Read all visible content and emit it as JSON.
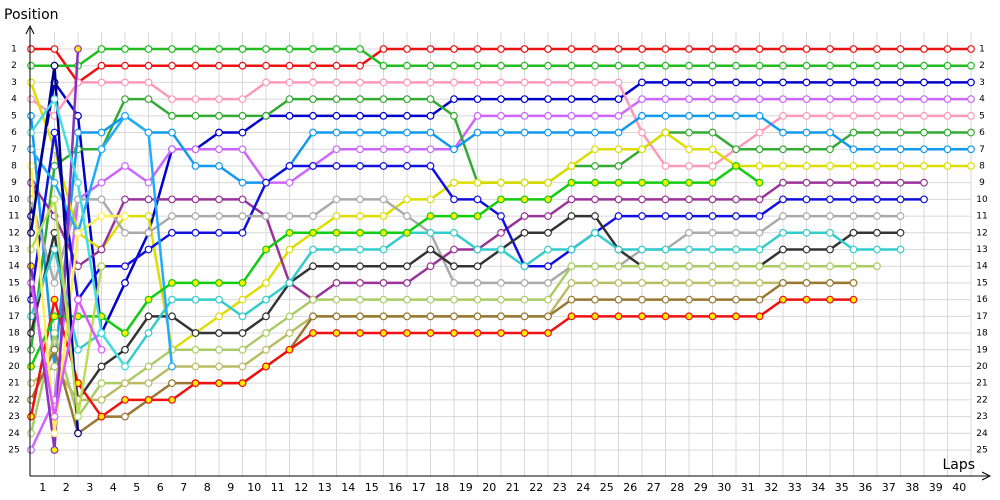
{
  "chart_data": {
    "type": "line",
    "y_label": "Position",
    "x_label": "Laps",
    "x": [
      0,
      1,
      2,
      3,
      4,
      5,
      6,
      7,
      8,
      9,
      10,
      11,
      12,
      13,
      14,
      15,
      16,
      17,
      18,
      19,
      20,
      21,
      22,
      23,
      24,
      25,
      26,
      27,
      28,
      29,
      30,
      31,
      32,
      33,
      34,
      35,
      36,
      37,
      38,
      39,
      40
    ],
    "xlim": [
      0,
      40
    ],
    "xticks": [
      1,
      2,
      3,
      4,
      5,
      6,
      7,
      8,
      9,
      10,
      11,
      12,
      13,
      14,
      15,
      16,
      17,
      18,
      19,
      20,
      21,
      22,
      23,
      24,
      25,
      26,
      27,
      28,
      29,
      30,
      31,
      32,
      33,
      34,
      35,
      36,
      37,
      38,
      39,
      40
    ],
    "ylim": [
      1,
      25
    ],
    "yticks": [
      1,
      2,
      3,
      4,
      5,
      6,
      7,
      8,
      9,
      10,
      11,
      12,
      13,
      14,
      15,
      16,
      17,
      18,
      19,
      20,
      21,
      22,
      23,
      24,
      25
    ],
    "grid": true,
    "marker_fill": "#ffffff",
    "series": [
      {
        "color": "#ee1111",
        "values": [
          1,
          1,
          3,
          2,
          2,
          2,
          2,
          2,
          2,
          2,
          2,
          2,
          2,
          2,
          2,
          1,
          1,
          1,
          1,
          1,
          1,
          1,
          1,
          1,
          1,
          1,
          1,
          1,
          1,
          1,
          1,
          1,
          1,
          1,
          1,
          1,
          1,
          1,
          1,
          1,
          1
        ]
      },
      {
        "color": "#22bb22",
        "values": [
          2,
          2,
          2,
          1,
          1,
          1,
          1,
          1,
          1,
          1,
          1,
          1,
          1,
          1,
          1,
          2,
          2,
          2,
          2,
          2,
          2,
          2,
          2,
          2,
          2,
          2,
          2,
          2,
          2,
          2,
          2,
          2,
          2,
          2,
          2,
          2,
          2,
          2,
          2,
          2,
          2
        ]
      },
      {
        "color": "#0000cc",
        "values": [
          11,
          3,
          5,
          18,
          15,
          12,
          7,
          7,
          6,
          6,
          5,
          5,
          5,
          5,
          5,
          5,
          5,
          5,
          4,
          4,
          4,
          4,
          4,
          4,
          4,
          4,
          3,
          3,
          3,
          3,
          3,
          3,
          3,
          3,
          3,
          3,
          3,
          3,
          3,
          3,
          3
        ]
      },
      {
        "color": "#cc66ff",
        "values": [
          25,
          22,
          10,
          9,
          8,
          9,
          7,
          7,
          7,
          7,
          9,
          9,
          8,
          7,
          7,
          7,
          7,
          7,
          7,
          5,
          5,
          5,
          5,
          5,
          5,
          5,
          4,
          4,
          4,
          4,
          4,
          4,
          4,
          4,
          4,
          4,
          4,
          4,
          4,
          4,
          4
        ]
      },
      {
        "color": "#ff99bb",
        "values": [
          4,
          5,
          3,
          3,
          3,
          3,
          4,
          4,
          4,
          4,
          3,
          3,
          3,
          3,
          3,
          3,
          3,
          3,
          3,
          3,
          3,
          3,
          3,
          3,
          3,
          3,
          6,
          8,
          8,
          8,
          7,
          6,
          5,
          5,
          5,
          5,
          5,
          5,
          5,
          5,
          5
        ]
      },
      {
        "color": "#33aa33",
        "values": [
          19,
          8,
          7,
          7,
          4,
          4,
          5,
          5,
          5,
          5,
          5,
          4,
          4,
          4,
          4,
          4,
          4,
          4,
          5,
          9,
          9,
          9,
          9,
          8,
          8,
          8,
          7,
          6,
          6,
          6,
          7,
          7,
          7,
          7,
          7,
          6,
          6,
          6,
          6,
          6,
          6
        ]
      },
      {
        "color": "#1199ee",
        "values": [
          5,
          20,
          6,
          6,
          5,
          6,
          6,
          8,
          8,
          9,
          9,
          8,
          6,
          6,
          6,
          6,
          6,
          6,
          7,
          6,
          6,
          6,
          6,
          6,
          6,
          6,
          5,
          5,
          5,
          5,
          5,
          5,
          6,
          6,
          6,
          7,
          7,
          7,
          7,
          7,
          7
        ]
      },
      {
        "color": "#dddd00",
        "values": [
          3,
          7,
          12,
          13,
          11,
          11,
          19,
          18,
          17,
          16,
          15,
          13,
          12,
          11,
          11,
          11,
          10,
          10,
          9,
          9,
          9,
          9,
          9,
          8,
          7,
          7,
          7,
          6,
          7,
          7,
          8,
          8,
          8,
          8,
          8,
          8,
          8,
          8,
          8,
          8,
          8
        ]
      },
      {
        "color": "#993399",
        "values": [
          9,
          11,
          14,
          13,
          10,
          10,
          10,
          10,
          10,
          10,
          11,
          15,
          16,
          15,
          15,
          15,
          15,
          14,
          13,
          13,
          12,
          11,
          11,
          10,
          10,
          10,
          10,
          10,
          10,
          10,
          10,
          10,
          9,
          9,
          9,
          9,
          9,
          9,
          9,
          null,
          null
        ]
      },
      {
        "color": "#1111dd",
        "values": [
          16,
          6,
          16,
          14,
          14,
          13,
          12,
          12,
          12,
          12,
          9,
          8,
          8,
          8,
          8,
          8,
          8,
          8,
          10,
          10,
          11,
          14,
          14,
          13,
          12,
          11,
          11,
          11,
          11,
          11,
          11,
          11,
          10,
          10,
          10,
          10,
          10,
          10,
          10,
          null,
          null
        ]
      },
      {
        "color": "#aaaaaa",
        "values": [
          10,
          15,
          10,
          10,
          12,
          12,
          11,
          11,
          11,
          11,
          11,
          11,
          11,
          10,
          10,
          10,
          11,
          12,
          15,
          15,
          15,
          15,
          15,
          14,
          14,
          14,
          13,
          13,
          12,
          12,
          12,
          12,
          11,
          11,
          11,
          11,
          11,
          11,
          null,
          null,
          null
        ]
      },
      {
        "color": "#333333",
        "values": [
          18,
          12,
          22,
          20,
          19,
          17,
          17,
          18,
          18,
          18,
          17,
          15,
          14,
          14,
          14,
          14,
          14,
          13,
          14,
          14,
          13,
          12,
          12,
          11,
          11,
          13,
          14,
          14,
          14,
          14,
          14,
          14,
          13,
          13,
          13,
          12,
          12,
          12,
          null,
          null,
          null
        ]
      },
      {
        "color": "#33cccc",
        "values": [
          17,
          13,
          19,
          18,
          20,
          18,
          16,
          16,
          16,
          17,
          16,
          15,
          13,
          13,
          13,
          13,
          12,
          12,
          12,
          13,
          13,
          14,
          13,
          13,
          12,
          13,
          13,
          13,
          13,
          13,
          13,
          13,
          12,
          12,
          12,
          13,
          13,
          13,
          null,
          null,
          null
        ]
      },
      {
        "color": "#aacc66",
        "values": [
          24,
          18,
          23,
          21,
          21,
          20,
          19,
          19,
          19,
          19,
          18,
          17,
          16,
          16,
          16,
          16,
          16,
          16,
          16,
          16,
          16,
          16,
          16,
          14,
          14,
          14,
          14,
          14,
          14,
          14,
          14,
          14,
          14,
          14,
          14,
          14,
          14,
          null,
          null,
          null,
          null
        ]
      },
      {
        "color": "#bbbb66",
        "values": [
          21,
          20,
          22,
          22,
          21,
          21,
          20,
          20,
          20,
          20,
          19,
          18,
          17,
          17,
          17,
          17,
          17,
          17,
          17,
          17,
          17,
          17,
          17,
          15,
          15,
          15,
          15,
          15,
          15,
          15,
          15,
          15,
          15,
          15,
          15,
          15,
          null,
          null,
          null,
          null,
          null
        ]
      },
      {
        "color": "#997733",
        "values": [
          22,
          19,
          24,
          23,
          23,
          22,
          21,
          21,
          21,
          21,
          20,
          19,
          17,
          17,
          17,
          17,
          17,
          17,
          17,
          17,
          17,
          17,
          17,
          16,
          16,
          16,
          16,
          16,
          16,
          16,
          16,
          16,
          15,
          15,
          15,
          15,
          null,
          null,
          null,
          null,
          null
        ]
      },
      {
        "color": "#ee1111",
        "marker_fill": "#ffee00",
        "values": [
          23,
          16,
          21,
          23,
          22,
          22,
          22,
          21,
          21,
          21,
          20,
          19,
          18,
          18,
          18,
          18,
          18,
          18,
          18,
          18,
          18,
          18,
          18,
          17,
          17,
          17,
          17,
          17,
          17,
          17,
          17,
          17,
          16,
          16,
          16,
          16,
          null,
          null,
          null,
          null,
          null
        ]
      },
      {
        "color": "#22aaff",
        "values": [
          7,
          9,
          12,
          7,
          5,
          6,
          20,
          null,
          null,
          null,
          null,
          null,
          null,
          null,
          null,
          null,
          null,
          null,
          null,
          null,
          null,
          null,
          null,
          null,
          null,
          null,
          null,
          null,
          null,
          null,
          null,
          null,
          null,
          null,
          null,
          null,
          null,
          null,
          null,
          null,
          null
        ]
      },
      {
        "color": "#11cc11",
        "marker_fill": "#ffee00",
        "values": [
          20,
          17,
          17,
          17,
          18,
          16,
          15,
          15,
          15,
          15,
          13,
          12,
          12,
          12,
          12,
          12,
          12,
          11,
          11,
          11,
          10,
          10,
          10,
          9,
          9,
          9,
          9,
          9,
          9,
          9,
          8,
          9,
          null,
          null,
          null,
          null,
          null,
          null,
          null,
          null,
          null
        ]
      },
      {
        "color": "#8833bb",
        "marker_fill": "#ffee00",
        "values": [
          14,
          25,
          1,
          null,
          null,
          null,
          null,
          null,
          null,
          null,
          null,
          null,
          null,
          null,
          null,
          null,
          null,
          null,
          null,
          null,
          null,
          null,
          null,
          null,
          null,
          null,
          null,
          null,
          null,
          null,
          null,
          null,
          null,
          null,
          null,
          null,
          null,
          null,
          null,
          null,
          null
        ]
      },
      {
        "color": "#ffee55",
        "values": [
          8,
          24,
          12,
          11,
          11,
          null,
          null,
          null,
          null,
          null,
          null,
          null,
          null,
          null,
          null,
          null,
          null,
          null,
          null,
          null,
          null,
          null,
          null,
          null,
          null,
          null,
          null,
          null,
          null,
          null,
          null,
          null,
          null,
          null,
          null,
          null,
          null,
          null,
          null,
          null,
          null
        ]
      },
      {
        "color": "#000088",
        "values": [
          12,
          2,
          24,
          null,
          null,
          null,
          null,
          null,
          null,
          null,
          null,
          null,
          null,
          null,
          null,
          null,
          null,
          null,
          null,
          null,
          null,
          null,
          null,
          null,
          null,
          null,
          null,
          null,
          null,
          null,
          null,
          null,
          null,
          null,
          null,
          null,
          null,
          null,
          null,
          null,
          null
        ]
      },
      {
        "color": "#bbdd55",
        "values": [
          13,
          10,
          23,
          14,
          null,
          null,
          null,
          null,
          null,
          null,
          null,
          null,
          null,
          null,
          null,
          null,
          null,
          null,
          null,
          null,
          null,
          null,
          null,
          null,
          null,
          null,
          null,
          null,
          null,
          null,
          null,
          null,
          null,
          null,
          null,
          null,
          null,
          null,
          null,
          null,
          null
        ]
      },
      {
        "color": "#44dddd",
        "values": [
          6,
          4,
          9,
          18,
          20,
          null,
          null,
          null,
          null,
          null,
          null,
          null,
          null,
          null,
          null,
          null,
          null,
          null,
          null,
          null,
          null,
          null,
          null,
          null,
          null,
          null,
          null,
          null,
          null,
          null,
          null,
          null,
          null,
          null,
          null,
          null,
          null,
          null,
          null,
          null,
          null
        ]
      },
      {
        "color": "#dd55ff",
        "values": [
          15,
          23,
          16,
          19,
          null,
          null,
          null,
          null,
          null,
          null,
          null,
          null,
          null,
          null,
          null,
          null,
          null,
          null,
          null,
          null,
          null,
          null,
          null,
          null,
          null,
          null,
          null,
          null,
          null,
          null,
          null,
          null,
          null,
          null,
          null,
          null,
          null,
          null,
          null,
          null,
          null
        ]
      }
    ]
  }
}
